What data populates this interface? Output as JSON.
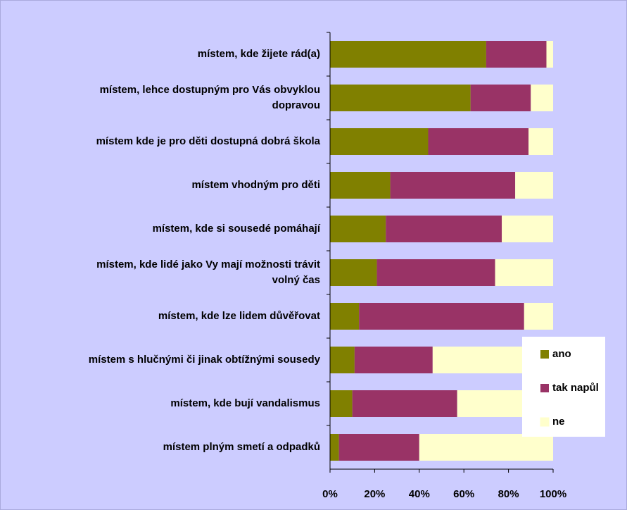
{
  "chart_data": {
    "type": "stacked-bar-horizontal",
    "categories": [
      "místem, kde žijete rád(a)",
      "místem, lehce dostupným pro Vás obvyklou dopravou",
      "místem kde je pro děti dostupná dobrá škola",
      "místem vhodným pro děti",
      "místem, kde si sousedé pomáhají",
      "místem, kde lidé jako Vy mají možnosti trávit volný čas",
      "místem, kde lze lidem důvěřovat",
      "místem s hlučnými či jinak obtížnými sousedy",
      "místem, kde bují vandalismus",
      "místem plným smetí a odpadků"
    ],
    "series": [
      {
        "name": "ano",
        "color": "#808000",
        "values": [
          70,
          63,
          44,
          27,
          25,
          21,
          13,
          11,
          10,
          4
        ]
      },
      {
        "name": "tak napůl",
        "color": "#993366",
        "values": [
          27,
          27,
          45,
          56,
          52,
          53,
          74,
          35,
          47,
          36
        ]
      },
      {
        "name": "ne",
        "color": "#ffffcc",
        "values": [
          3,
          10,
          11,
          17,
          23,
          26,
          13,
          54,
          43,
          60
        ]
      }
    ],
    "xlim": [
      0,
      100
    ],
    "xticks": [
      {
        "value": 0,
        "label": "0%"
      },
      {
        "value": 20,
        "label": "20%"
      },
      {
        "value": 40,
        "label": "40%"
      },
      {
        "value": 60,
        "label": "60%"
      },
      {
        "value": 80,
        "label": "80%"
      },
      {
        "value": 100,
        "label": "100%"
      }
    ],
    "legend": "right"
  }
}
